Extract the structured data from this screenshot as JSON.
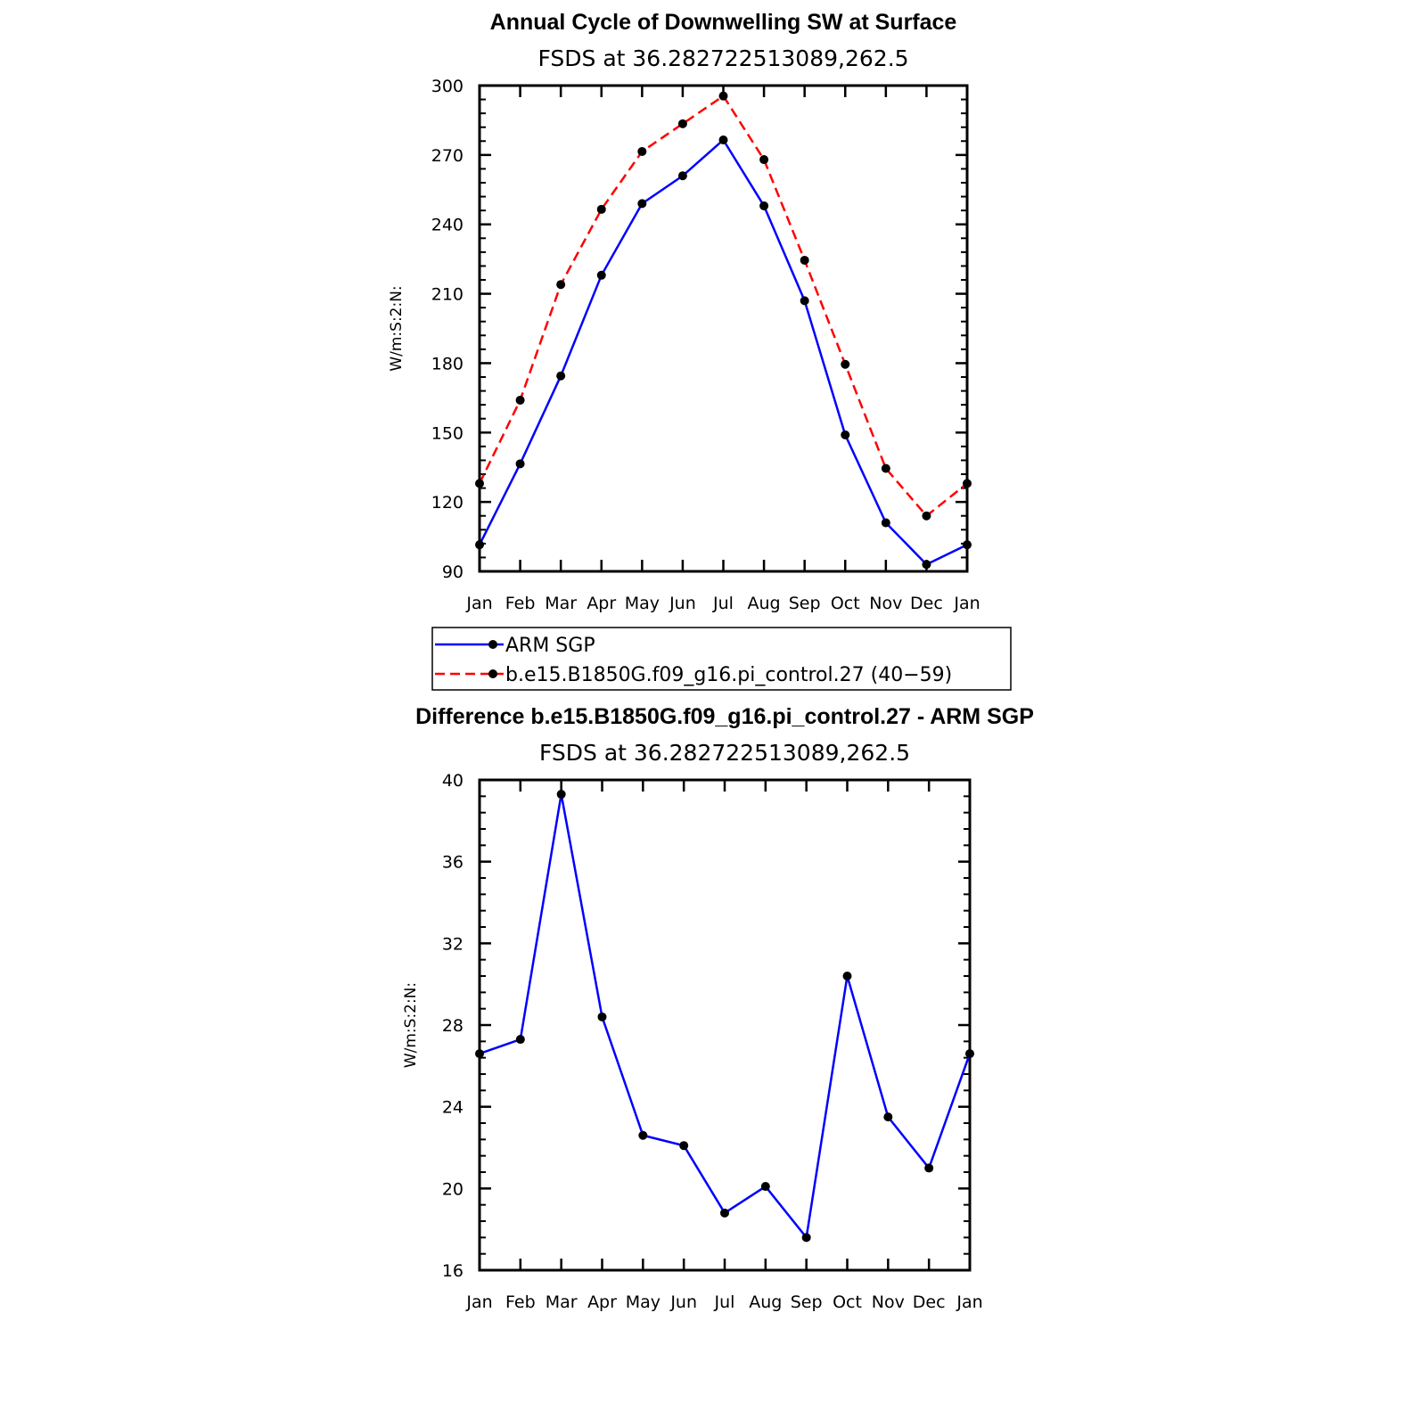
{
  "chart_data": [
    {
      "type": "line",
      "title": "Annual Cycle of Downwelling SW at Surface",
      "subtitle": "FSDS at 36.282722513089,262.5",
      "ylabel": "W/m:S:2:N:",
      "categories": [
        "Jan",
        "Feb",
        "Mar",
        "Apr",
        "May",
        "Jun",
        "Jul",
        "Aug",
        "Sep",
        "Oct",
        "Nov",
        "Dec",
        "Jan"
      ],
      "ylim": [
        90,
        300
      ],
      "yticks": [
        90,
        120,
        150,
        180,
        210,
        240,
        270,
        300
      ],
      "grid": false,
      "series": [
        {
          "name": "ARM SGP",
          "color": "#0000ff",
          "dash": "solid",
          "values": [
            101.5,
            136.5,
            174.5,
            218,
            249,
            261,
            276.5,
            248,
            207,
            149,
            111,
            93,
            101.5
          ]
        },
        {
          "name": "b.e15.B1850G.f09_g16.pi_control.27 (40−59)",
          "color": "#ff0000",
          "dash": "dashed",
          "values": [
            128,
            164,
            214,
            246.5,
            271.5,
            283.5,
            295.5,
            268,
            224.5,
            179.5,
            134.5,
            114,
            128
          ]
        }
      ]
    },
    {
      "type": "line",
      "title": "Difference b.e15.B1850G.f09_g16.pi_control.27 - ARM SGP",
      "subtitle": "FSDS at 36.282722513089,262.5",
      "ylabel": "W/m:S:2:N:",
      "categories": [
        "Jan",
        "Feb",
        "Mar",
        "Apr",
        "May",
        "Jun",
        "Jul",
        "Aug",
        "Sep",
        "Oct",
        "Nov",
        "Dec",
        "Jan"
      ],
      "ylim": [
        16,
        40
      ],
      "yticks": [
        16,
        20,
        24,
        28,
        32,
        36,
        40
      ],
      "grid": false,
      "series": [
        {
          "color": "#0000ff",
          "dash": "solid",
          "values": [
            26.6,
            27.3,
            39.3,
            28.4,
            22.6,
            22.1,
            18.8,
            20.1,
            17.6,
            30.4,
            23.5,
            21.0,
            26.6
          ]
        }
      ]
    }
  ]
}
